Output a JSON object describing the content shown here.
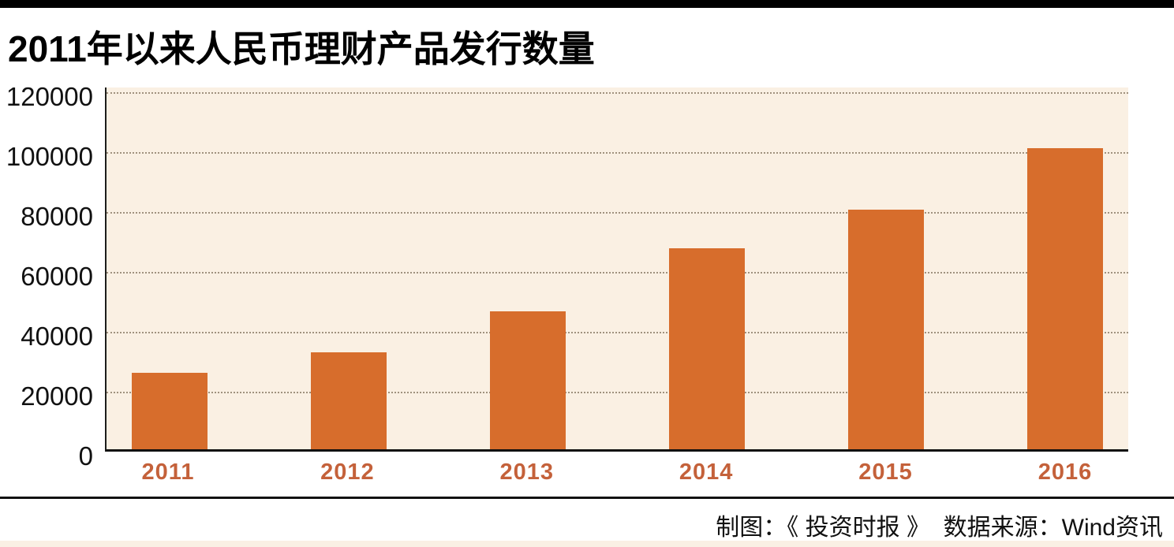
{
  "header": {
    "title": "2011年以来人民币理财产品发行数量"
  },
  "chart_data": {
    "type": "bar",
    "title": "2011年以来人民币理财产品发行数量",
    "categories": [
      "2011",
      "2012",
      "2013",
      "2014",
      "2015",
      "2016"
    ],
    "values": [
      25500,
      32500,
      46000,
      67000,
      80000,
      100500
    ],
    "xlabel": "",
    "ylabel": "",
    "ylim": [
      0,
      120000
    ],
    "yticks": [
      0,
      20000,
      40000,
      60000,
      80000,
      100000,
      120000
    ],
    "ytick_labels": [
      "0",
      "20000",
      "40000",
      "60000",
      "80000",
      "100000",
      "120000"
    ],
    "grid": "horizontal-dotted",
    "legend_position": "none",
    "series_name": "人民币理财产品发行数量"
  },
  "footer": {
    "source_text": "制图：《 投资时报 》  数据来源：Wind资讯"
  },
  "colors": {
    "top_bar": "#000000",
    "bar_fill": "#d76d2c",
    "plot_background": "#faf0e3",
    "gridline": "#a0927f",
    "x_tick_label": "#c4613a",
    "y_tick_label": "#111111",
    "divider": "#111111",
    "bottom_strip": "#faf0e4"
  }
}
